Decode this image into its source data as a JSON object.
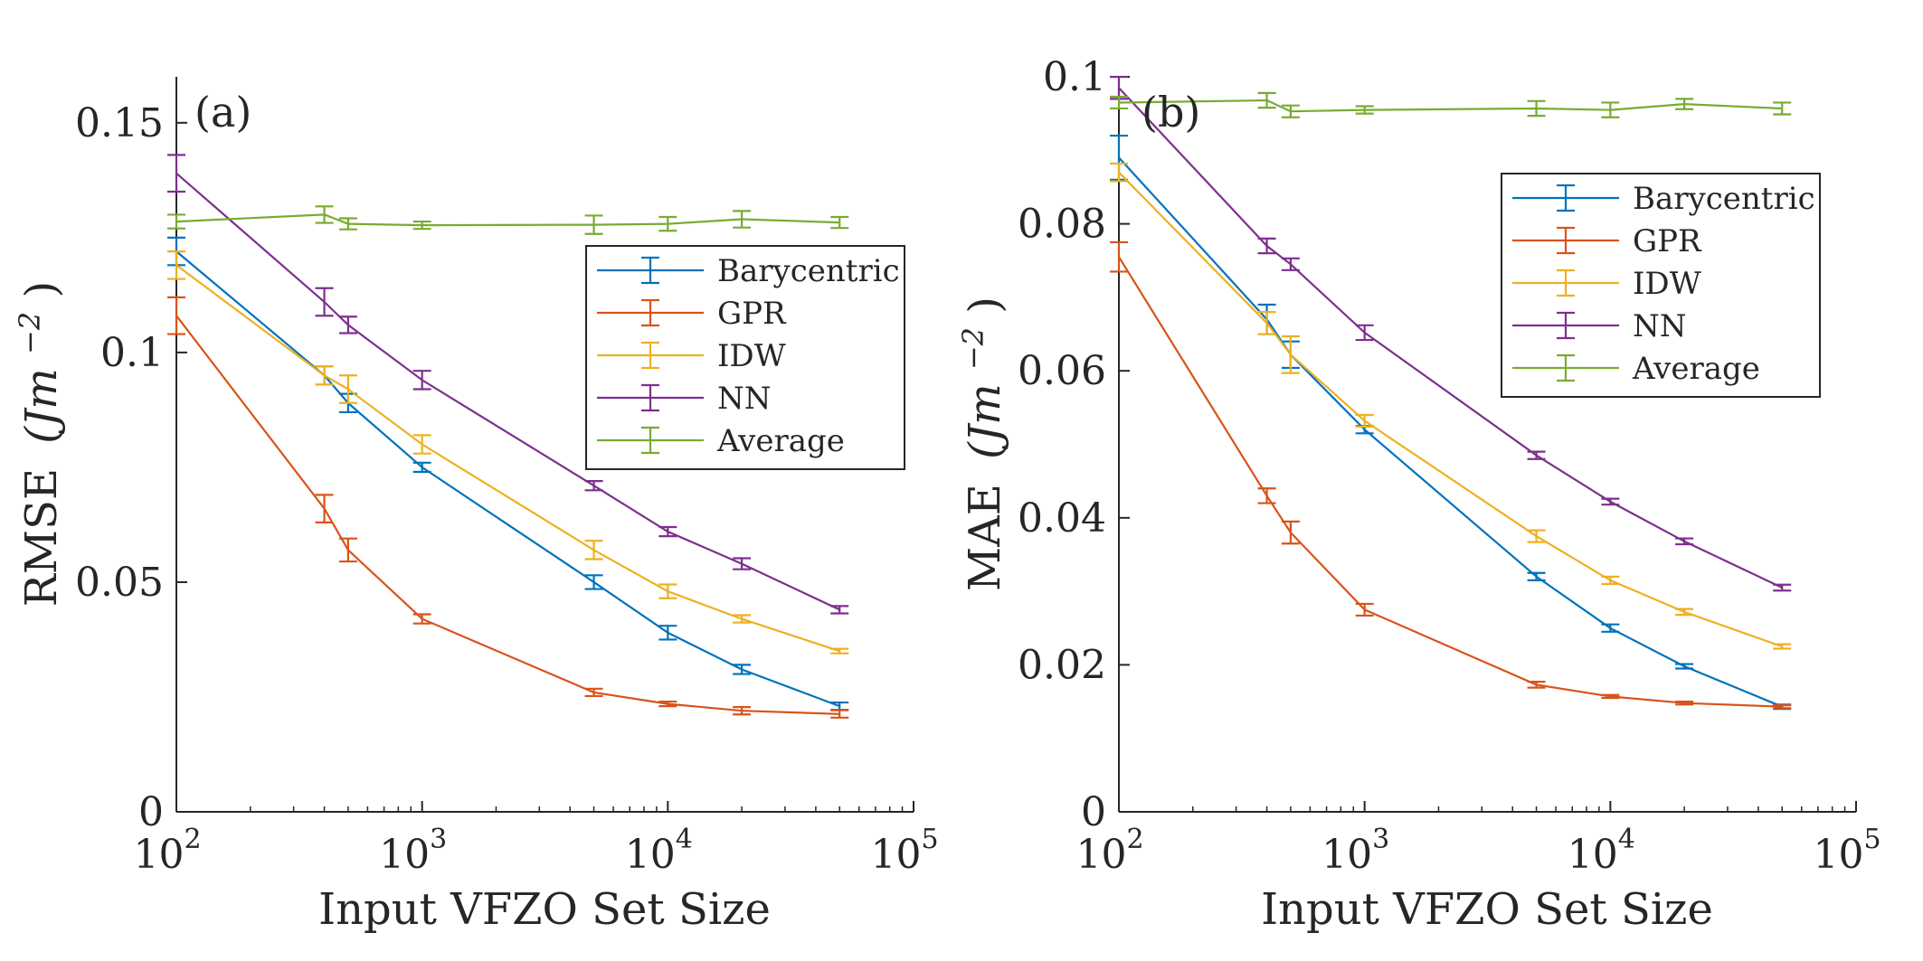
{
  "figure": {
    "xlabel": "Input VFZO Set Size",
    "series_colors": {
      "Barycentric": "#0072BD",
      "GPR": "#D95319",
      "IDW": "#EDB120",
      "NN": "#7E2F8E",
      "Average": "#77AC30"
    }
  },
  "chart_data": [
    {
      "type": "line",
      "panel_label": "(a)",
      "xlabel": "Input VFZO Set Size",
      "ylabel_text": "RMSE",
      "ylabel_unit": "(Jm",
      "ylabel_exp": "−2",
      "x_scale": "log",
      "xlim": [
        100,
        100000
      ],
      "ylim": [
        0,
        0.16
      ],
      "x_ticks": [
        100,
        1000,
        10000,
        100000
      ],
      "x_tick_labels": [
        "10",
        "10",
        "10",
        "10"
      ],
      "x_tick_exps": [
        "2",
        "3",
        "4",
        "5"
      ],
      "y_ticks": [
        0,
        0.05,
        0.1,
        0.15
      ],
      "y_tick_labels": [
        "0",
        "0.05",
        "0.1",
        "0.15"
      ],
      "legend_position": "right, upper-middle",
      "x": [
        100,
        400,
        500,
        1000,
        5000,
        10000,
        20000,
        50000
      ],
      "series": [
        {
          "name": "Barycentric",
          "color": "#0072BD",
          "values": [
            0.122,
            0.095,
            0.089,
            0.075,
            0.05,
            0.039,
            0.031,
            0.023
          ],
          "err": [
            0.003,
            0.002,
            0.002,
            0.001,
            0.0015,
            0.0015,
            0.001,
            0.0008
          ]
        },
        {
          "name": "GPR",
          "color": "#D95319",
          "values": [
            0.108,
            0.066,
            0.057,
            0.042,
            0.026,
            0.0235,
            0.022,
            0.0213
          ],
          "err": [
            0.004,
            0.003,
            0.0025,
            0.001,
            0.0008,
            0.0005,
            0.0008,
            0.0008
          ]
        },
        {
          "name": "IDW",
          "color": "#EDB120",
          "values": [
            0.119,
            0.095,
            0.092,
            0.08,
            0.057,
            0.048,
            0.042,
            0.035
          ],
          "err": [
            0.003,
            0.002,
            0.003,
            0.002,
            0.002,
            0.0015,
            0.0008,
            0.0005
          ]
        },
        {
          "name": "NN",
          "color": "#7E2F8E",
          "values": [
            0.139,
            0.111,
            0.106,
            0.094,
            0.071,
            0.061,
            0.054,
            0.044
          ],
          "err": [
            0.004,
            0.003,
            0.0018,
            0.002,
            0.001,
            0.001,
            0.0012,
            0.0008
          ]
        },
        {
          "name": "Average",
          "color": "#77AC30",
          "values": [
            0.1285,
            0.13,
            0.128,
            0.1277,
            0.1278,
            0.128,
            0.129,
            0.1283
          ],
          "err": [
            0.0015,
            0.0018,
            0.0012,
            0.0008,
            0.002,
            0.0015,
            0.0018,
            0.0012
          ]
        }
      ]
    },
    {
      "type": "line",
      "panel_label": "(b)",
      "xlabel": "Input VFZO Set Size",
      "ylabel_text": "MAE",
      "ylabel_unit": "(Jm",
      "ylabel_exp": "−2",
      "x_scale": "log",
      "xlim": [
        100,
        100000
      ],
      "ylim": [
        0,
        0.1
      ],
      "x_ticks": [
        100,
        1000,
        10000,
        100000
      ],
      "x_tick_labels": [
        "10",
        "10",
        "10",
        "10"
      ],
      "x_tick_exps": [
        "2",
        "3",
        "4",
        "5"
      ],
      "y_ticks": [
        0,
        0.02,
        0.04,
        0.06,
        0.08,
        0.1
      ],
      "y_tick_labels": [
        "0",
        "0.02",
        "0.04",
        "0.06",
        "0.08",
        "0.1"
      ],
      "legend_position": "top-right",
      "x": [
        100,
        400,
        500,
        1000,
        5000,
        10000,
        20000,
        50000
      ],
      "series": [
        {
          "name": "Barycentric",
          "color": "#0072BD",
          "values": [
            0.089,
            0.067,
            0.0622,
            0.052,
            0.032,
            0.025,
            0.0198,
            0.0143
          ],
          "err": [
            0.003,
            0.002,
            0.0018,
            0.0005,
            0.0005,
            0.0005,
            0.0003,
            0.0003
          ]
        },
        {
          "name": "GPR",
          "color": "#D95319",
          "values": [
            0.0755,
            0.043,
            0.038,
            0.0275,
            0.0173,
            0.0157,
            0.0148,
            0.0143
          ],
          "err": [
            0.002,
            0.001,
            0.0015,
            0.0008,
            0.0004,
            0.0002,
            0.0002,
            0.0002
          ]
        },
        {
          "name": "IDW",
          "color": "#EDB120",
          "values": [
            0.087,
            0.0665,
            0.0622,
            0.0532,
            0.0375,
            0.0315,
            0.0272,
            0.0225
          ],
          "err": [
            0.0012,
            0.0015,
            0.0025,
            0.0008,
            0.0008,
            0.0005,
            0.0004,
            0.0003
          ]
        },
        {
          "name": "NN",
          "color": "#7E2F8E",
          "values": [
            0.0985,
            0.077,
            0.0745,
            0.0652,
            0.0485,
            0.0422,
            0.0368,
            0.0305
          ],
          "err": [
            0.0015,
            0.001,
            0.0008,
            0.001,
            0.0005,
            0.0004,
            0.0004,
            0.0004
          ]
        },
        {
          "name": "Average",
          "color": "#77AC30",
          "values": [
            0.0965,
            0.0968,
            0.0953,
            0.0955,
            0.0957,
            0.0955,
            0.0963,
            0.0957
          ],
          "err": [
            0.0008,
            0.001,
            0.0008,
            0.0005,
            0.001,
            0.001,
            0.0007,
            0.0008
          ]
        }
      ]
    }
  ]
}
